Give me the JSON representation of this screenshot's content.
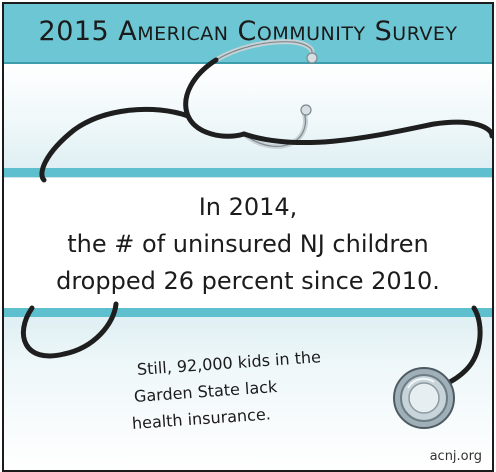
{
  "header": {
    "title": "2015 American Community Survey"
  },
  "main_message": {
    "line1": "In 2014,",
    "line2": "the # of uninsured NJ children",
    "line3": "dropped 26 percent since 2010."
  },
  "sub_message": {
    "line1": "Still, 92,000 kids in the",
    "line2": "Garden State lack",
    "line3": "health insurance."
  },
  "footer": {
    "url": "acnj.org"
  },
  "colors": {
    "accent_teal": "#6dc6d3",
    "stripe_teal": "#5ec0ce",
    "stethoscope_tube": "#1e1e1e",
    "chest_piece": "#8fa0aa"
  },
  "illustration": {
    "icon": "stethoscope-icon"
  }
}
